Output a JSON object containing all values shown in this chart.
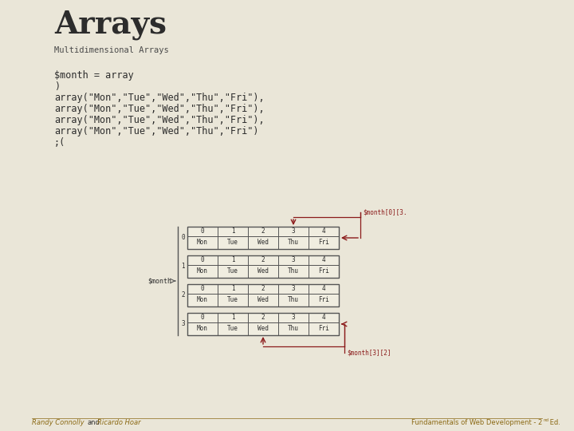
{
  "bg_color": "#eae6d8",
  "title": "Arrays",
  "subtitle": "Multidimensional Arrays",
  "title_color": "#2c2c2c",
  "subtitle_color": "#4a4a4a",
  "code_lines": [
    "$month = array",
    ")",
    "array(\"Mon\",\"Tue\",\"Wed\",\"Thu\",\"Fri\"),",
    "array(\"Mon\",\"Tue\",\"Wed\",\"Thu\",\"Fri\"),",
    "array(\"Mon\",\"Tue\",\"Wed\",\"Thu\",\"Fri\"),",
    "array(\"Mon\",\"Tue\",\"Wed\",\"Thu\",\"Fri\")",
    ";("
  ],
  "code_color": "#2c2c2c",
  "table_cols": [
    "0",
    "1",
    "2",
    "3",
    "4"
  ],
  "table_data": [
    "Mon",
    "Tue",
    "Wed",
    "Thu",
    "Fri"
  ],
  "row_labels": [
    "0",
    "1",
    "2",
    "3"
  ],
  "table_border_color": "#555555",
  "table_bg": "#f0ede0",
  "arrow_color": "#8b1a1a",
  "label_smonth": "$month",
  "label_ref1": "$month[0][3.",
  "label_ref2": "$month[3][2]",
  "footer_left": "Randy Connolly",
  "footer_and": "and",
  "footer_right": "Ricardo Hoar",
  "footer_book": "Fundamentals of Web Development - 2",
  "footer_sup": "nd",
  "footer_ed": " Ed.",
  "footer_color": "#8b6914"
}
